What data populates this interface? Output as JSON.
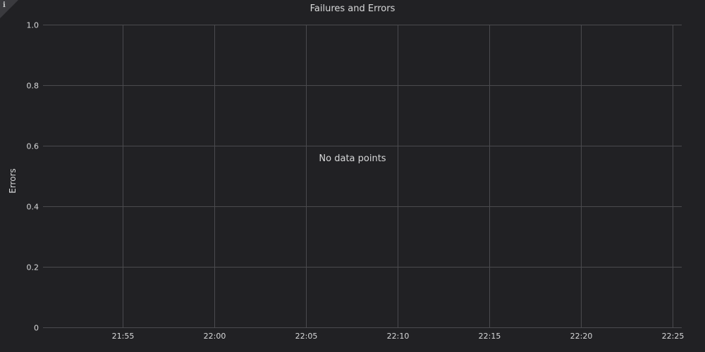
{
  "panel": {
    "title": "Failures and Errors",
    "info_icon": "info-icon",
    "info_glyph": "i",
    "empty_message": "No data points"
  },
  "colors": {
    "background": "#212124",
    "grid": "#4a4a4e",
    "text": "#d8d9da"
  },
  "chart_data": {
    "type": "line",
    "title": "Failures and Errors",
    "xlabel": "",
    "ylabel": "Errors",
    "x_ticks": [
      "21:55",
      "22:00",
      "22:05",
      "22:10",
      "22:15",
      "22:20",
      "22:25"
    ],
    "y_ticks": [
      "0",
      "0.2",
      "0.4",
      "0.6",
      "0.8",
      "1.0"
    ],
    "ylim": [
      0,
      1
    ],
    "xlim": [
      "21:50:40",
      "22:25:30"
    ],
    "grid": true,
    "series": []
  }
}
